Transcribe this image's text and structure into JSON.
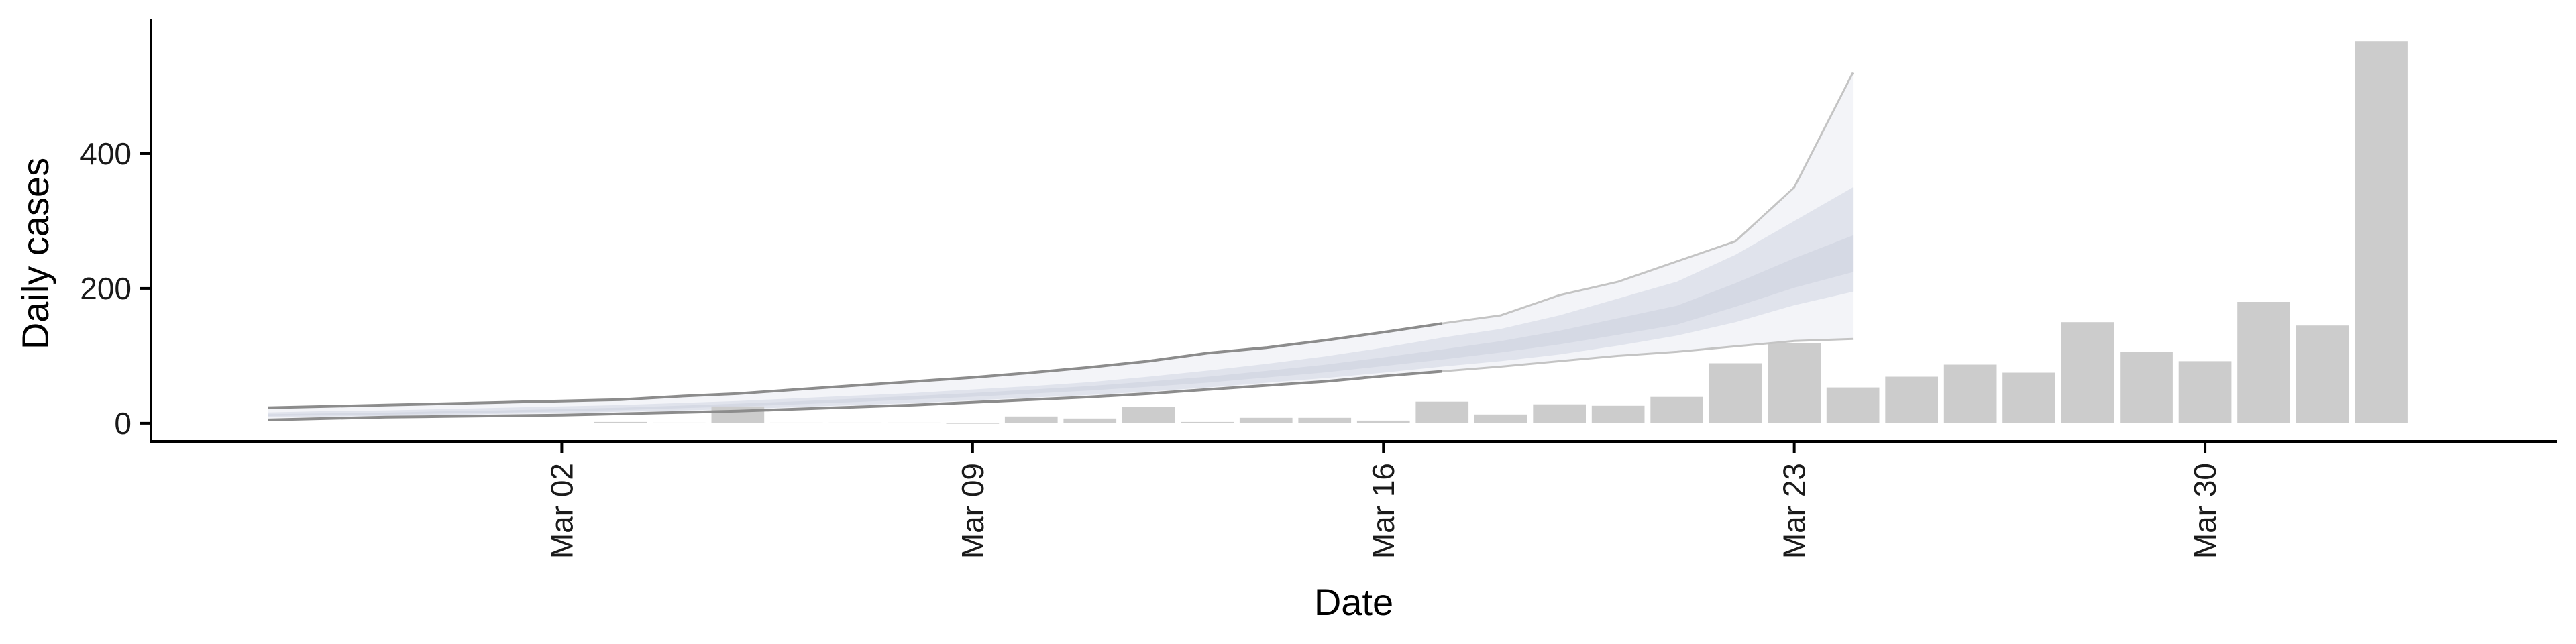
{
  "chart_data": {
    "type": "bar",
    "xlabel": "Date",
    "ylabel": "Daily cases",
    "ylim": [
      -25,
      600
    ],
    "y_ticks": [
      0,
      200,
      400
    ],
    "x_ticks": [
      {
        "label": "Mar 02",
        "date": "2020-03-02"
      },
      {
        "label": "Mar 09",
        "date": "2020-03-09"
      },
      {
        "label": "Mar 16",
        "date": "2020-03-16"
      },
      {
        "label": "Mar 23",
        "date": "2020-03-23"
      },
      {
        "label": "Mar 30",
        "date": "2020-03-30"
      }
    ],
    "x_range": [
      "2020-02-24",
      "2020-04-05"
    ],
    "bars": {
      "name": "Daily cases",
      "color": "#cccccc",
      "dates": [
        "2020-03-03",
        "2020-03-04",
        "2020-03-05",
        "2020-03-06",
        "2020-03-07",
        "2020-03-08",
        "2020-03-09",
        "2020-03-10",
        "2020-03-11",
        "2020-03-12",
        "2020-03-13",
        "2020-03-14",
        "2020-03-15",
        "2020-03-16",
        "2020-03-17",
        "2020-03-18",
        "2020-03-19",
        "2020-03-20",
        "2020-03-21",
        "2020-03-22",
        "2020-03-23",
        "2020-03-24",
        "2020-03-25",
        "2020-03-26",
        "2020-03-27",
        "2020-03-28",
        "2020-03-29",
        "2020-03-30",
        "2020-03-31",
        "2020-04-01",
        "2020-04-02"
      ],
      "values": [
        2,
        1,
        25,
        1,
        1,
        1,
        0,
        10,
        7,
        24,
        2,
        8,
        8,
        4,
        32,
        13,
        28,
        26,
        39,
        89,
        119,
        53,
        69,
        87,
        75,
        150,
        106,
        92,
        180,
        145,
        567
      ]
    },
    "forecast": {
      "dates": [
        "2020-02-26",
        "2020-02-27",
        "2020-02-28",
        "2020-02-29",
        "2020-03-01",
        "2020-03-02",
        "2020-03-03",
        "2020-03-04",
        "2020-03-05",
        "2020-03-06",
        "2020-03-07",
        "2020-03-08",
        "2020-03-09",
        "2020-03-10",
        "2020-03-11",
        "2020-03-12",
        "2020-03-13",
        "2020-03-14",
        "2020-03-15",
        "2020-03-16",
        "2020-03-17",
        "2020-03-18",
        "2020-03-19",
        "2020-03-20",
        "2020-03-21",
        "2020-03-22",
        "2020-03-23",
        "2020-03-24"
      ],
      "upper_outer": [
        23,
        25,
        27,
        29,
        31,
        33,
        35,
        40,
        44,
        50,
        56,
        62,
        68,
        75,
        83,
        92,
        104,
        112,
        123,
        135,
        148,
        160,
        190,
        210,
        240,
        270,
        350,
        520
      ],
      "upper_inner": [
        16,
        18,
        19,
        21,
        23,
        25,
        27,
        30,
        33,
        37,
        41,
        45,
        50,
        55,
        61,
        69,
        78,
        88,
        99,
        112,
        127,
        140,
        160,
        185,
        210,
        250,
        300,
        350
      ],
      "median": [
        12,
        13,
        14,
        16,
        17,
        19,
        21,
        24,
        27,
        30,
        34,
        38,
        42,
        47,
        52,
        58,
        64,
        72,
        80,
        90,
        100,
        112,
        125,
        140,
        155,
        185,
        215,
        240
      ],
      "lower_inner": [
        9,
        10,
        11,
        12,
        14,
        15,
        17,
        19,
        21,
        24,
        27,
        30,
        34,
        38,
        42,
        47,
        53,
        60,
        67,
        75,
        84,
        92,
        102,
        115,
        130,
        150,
        175,
        195
      ],
      "lower_outer": [
        5,
        7,
        9,
        10,
        11,
        12,
        14,
        16,
        18,
        21,
        24,
        27,
        31,
        35,
        39,
        44,
        50,
        56,
        62,
        70,
        77,
        84,
        92,
        100,
        106,
        114,
        122,
        125
      ]
    },
    "colors": {
      "bars": "#cccccc",
      "band_outer": "#f3f4f8",
      "band_inner": "#dcdfea",
      "band_core": "#c8ccdb",
      "bound_line": "#8c8c8c"
    },
    "legend": "none",
    "grid": false
  }
}
